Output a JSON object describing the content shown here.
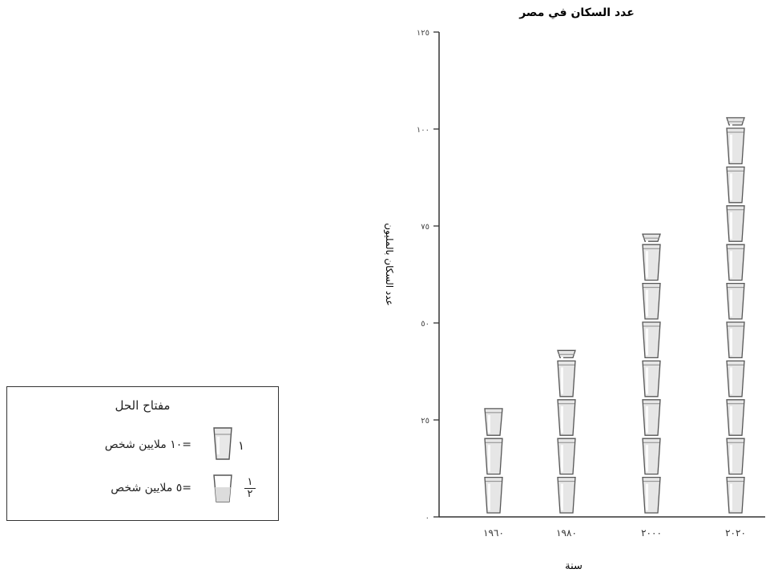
{
  "chart_data": {
    "type": "pictograph",
    "title": "عدد السكان في مصر",
    "xlabel": "سنة",
    "ylabel": "عدد السكان بالمليون",
    "categories": [
      "١٩٦٠",
      "١٩٨٠",
      "٢٠٠٠",
      "٢٠٢٠"
    ],
    "values": [
      27.5,
      42.5,
      72.5,
      102.5
    ],
    "ylim": [
      0,
      125
    ],
    "yticks": [
      0,
      25,
      50,
      75,
      100,
      125
    ],
    "ytick_labels": [
      "٠",
      "٢٥",
      "٥٠",
      "٧٥",
      "١٠٠",
      "١٢٥"
    ],
    "unit_value": 10,
    "icon": "glass-icon"
  },
  "legend": {
    "title": "مفتاح الحل",
    "rows": [
      {
        "count": "١",
        "text": "=١٠ ملايين شخص"
      },
      {
        "count_num": "١",
        "count_den": "٢",
        "text": "=٥ ملايين شخص"
      }
    ]
  }
}
